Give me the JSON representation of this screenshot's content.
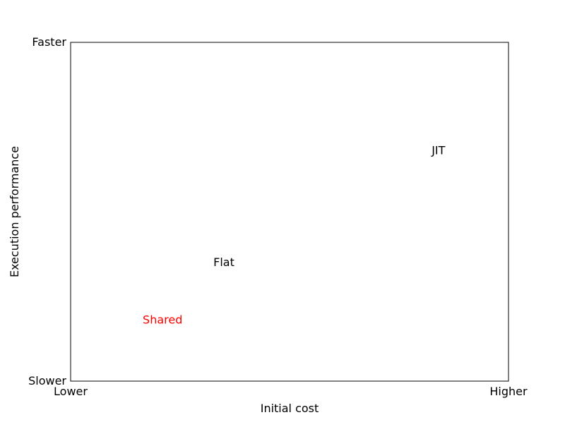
{
  "chart_data": {
    "type": "scatter",
    "title": "",
    "xlabel": "Initial cost",
    "ylabel": "Execution performance",
    "xlim": [
      0,
      1
    ],
    "ylim": [
      0,
      1
    ],
    "grid": false,
    "x_ticks": [
      {
        "value": 0,
        "label": "Lower"
      },
      {
        "value": 1,
        "label": "Higher"
      }
    ],
    "y_ticks": [
      {
        "value": 0,
        "label": "Slower"
      },
      {
        "value": 1,
        "label": "Faster"
      }
    ],
    "points": [
      {
        "label": "JIT",
        "x": 0.84,
        "y": 0.68,
        "color": "#000000"
      },
      {
        "label": "Flat",
        "x": 0.35,
        "y": 0.35,
        "color": "#000000"
      },
      {
        "label": "Shared",
        "x": 0.21,
        "y": 0.18,
        "color": "#ff0000"
      }
    ]
  }
}
